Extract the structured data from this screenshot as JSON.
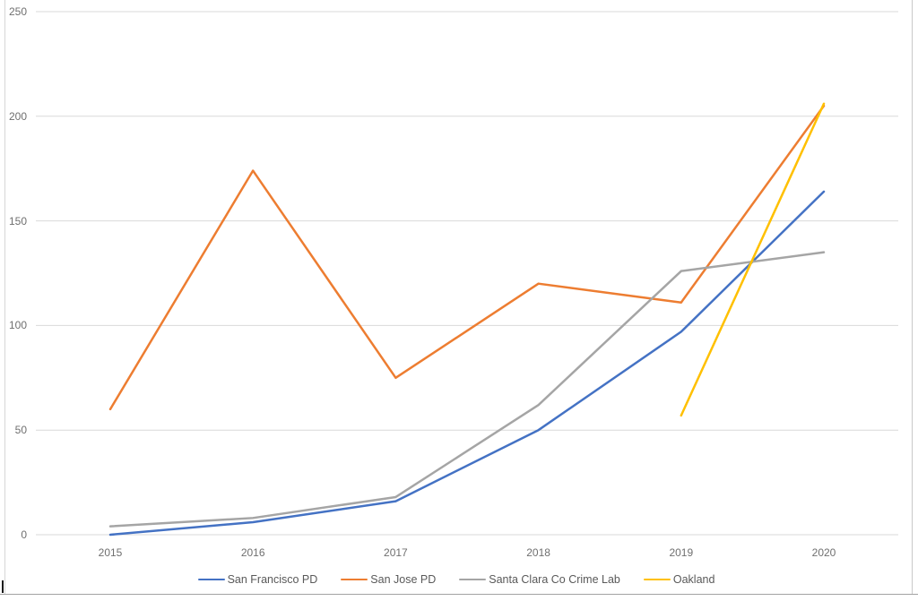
{
  "window": {
    "background": "#ffffff",
    "border_color": "#c9c9c9",
    "bottom_edge_color": "#a3a3a3"
  },
  "chart_data": {
    "type": "line",
    "title": "",
    "xlabel": "",
    "ylabel": "",
    "x": [
      "2015",
      "2016",
      "2017",
      "2018",
      "2019",
      "2020"
    ],
    "series": [
      {
        "name": "San Francisco PD",
        "color": "#4472C4",
        "values": [
          0,
          6,
          16,
          50,
          97,
          164
        ]
      },
      {
        "name": "San Jose PD",
        "color": "#ED7D31",
        "values": [
          60,
          174,
          75,
          120,
          111,
          205
        ]
      },
      {
        "name": "Santa Clara Co Crime Lab",
        "color": "#A5A5A5",
        "values": [
          4,
          8,
          18,
          62,
          126,
          135
        ]
      },
      {
        "name": "Oakland",
        "color": "#FFC000",
        "values": [
          null,
          null,
          null,
          null,
          57,
          206
        ]
      }
    ],
    "ylim": [
      0,
      250
    ],
    "yticks": [
      0,
      50,
      100,
      150,
      200,
      250
    ],
    "grid": true,
    "gridline_color": "#d9d9d9",
    "tick_label_color": "#6f6f6f",
    "legend_position": "bottom",
    "line_width": 2.5
  }
}
